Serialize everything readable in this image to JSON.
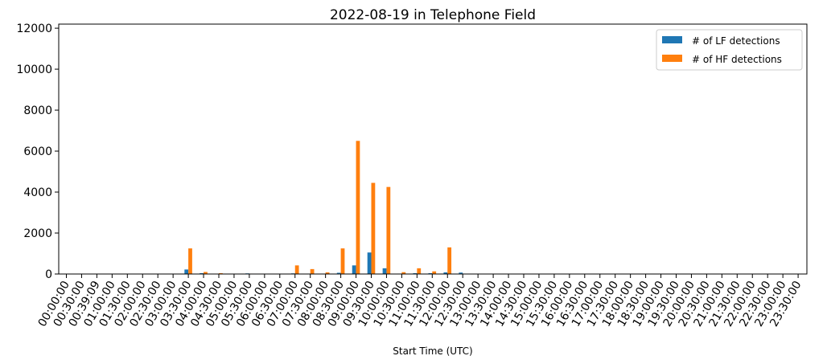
{
  "chart_data": {
    "type": "bar",
    "title": "2022-08-19 in Telephone Field",
    "xlabel": "Start Time (UTC)",
    "ylabel": "",
    "ylim": [
      0,
      12200
    ],
    "yticks": [
      0,
      2000,
      4000,
      6000,
      8000,
      10000,
      12000
    ],
    "categories": [
      "00:00:00",
      "00:30:00",
      "00:39:09",
      "01:00:00",
      "01:30:00",
      "02:00:00",
      "02:30:00",
      "03:00:00",
      "03:30:00",
      "04:00:00",
      "04:30:00",
      "05:00:00",
      "05:30:00",
      "06:00:00",
      "06:30:00",
      "07:00:00",
      "07:30:00",
      "08:00:00",
      "08:30:00",
      "09:00:00",
      "09:30:00",
      "10:00:00",
      "10:30:00",
      "11:00:00",
      "11:30:00",
      "12:00:00",
      "12:30:00",
      "13:00:00",
      "13:30:00",
      "14:00:00",
      "14:30:00",
      "15:00:00",
      "15:30:00",
      "16:00:00",
      "16:30:00",
      "17:00:00",
      "17:30:00",
      "18:00:00",
      "18:30:00",
      "19:00:00",
      "19:30:00",
      "20:00:00",
      "20:30:00",
      "21:00:00",
      "21:30:00",
      "22:00:00",
      "22:30:00",
      "23:00:00",
      "23:30:00"
    ],
    "series": [
      {
        "name": "# of LF detections",
        "color": "#1f77b4",
        "values": [
          0,
          0,
          0,
          0,
          0,
          0,
          0,
          0,
          220,
          40,
          10,
          0,
          30,
          0,
          0,
          30,
          20,
          20,
          60,
          420,
          1050,
          280,
          20,
          40,
          40,
          80,
          70,
          0,
          0,
          0,
          0,
          0,
          0,
          0,
          0,
          0,
          0,
          0,
          0,
          0,
          0,
          0,
          0,
          0,
          0,
          0,
          0,
          0,
          0
        ]
      },
      {
        "name": "# of HF detections",
        "color": "#ff7f0e",
        "values": [
          0,
          0,
          0,
          0,
          0,
          0,
          0,
          0,
          1250,
          100,
          40,
          10,
          20,
          0,
          0,
          420,
          240,
          80,
          1250,
          6500,
          4450,
          4250,
          90,
          280,
          130,
          1300,
          0,
          0,
          0,
          0,
          0,
          0,
          0,
          0,
          0,
          0,
          0,
          0,
          0,
          0,
          0,
          0,
          0,
          0,
          0,
          0,
          0,
          0,
          0
        ]
      }
    ],
    "legend_position": "top-right",
    "grid": false
  }
}
